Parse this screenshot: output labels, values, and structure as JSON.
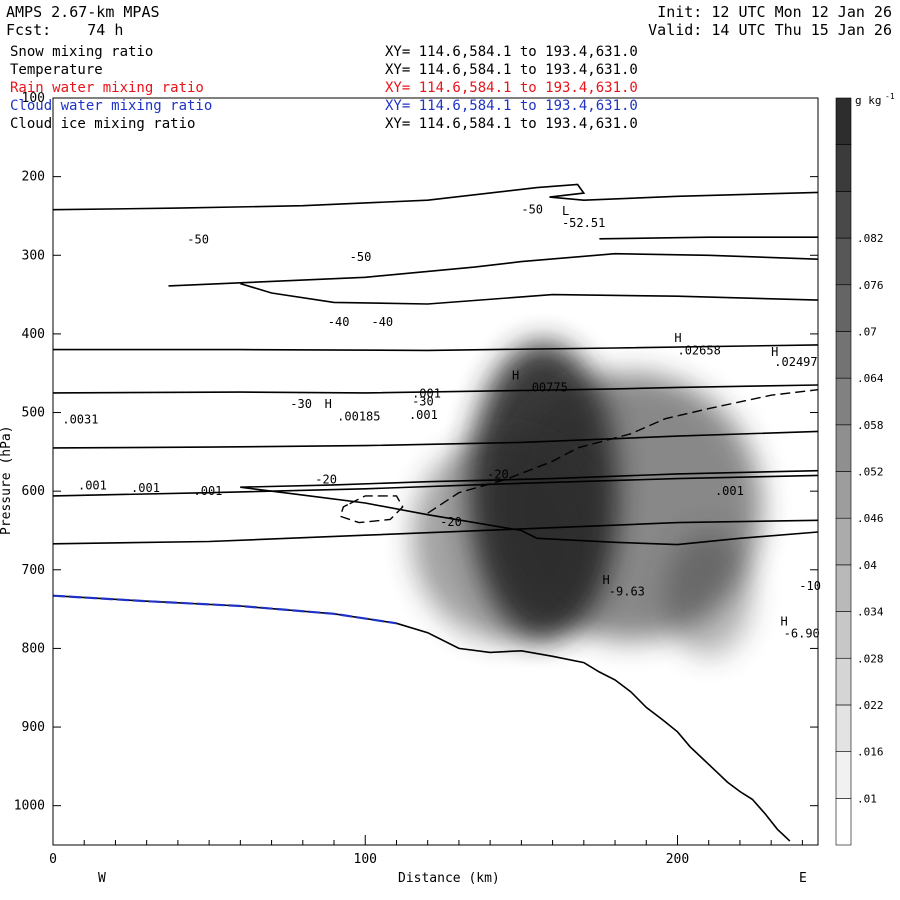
{
  "header": {
    "model": "AMPS 2.67-km MPAS",
    "init": "Init: 12 UTC Mon 12 Jan 26",
    "fcst": "Fcst:    74 h",
    "valid": "Valid: 14 UTC Thu 15 Jan 26"
  },
  "fields": [
    {
      "name": "Snow mixing ratio",
      "xy": "XY= 114.6,584.1 to 193.4,631.0",
      "color": "#000000"
    },
    {
      "name": "Temperature",
      "xy": "XY= 114.6,584.1 to 193.4,631.0",
      "color": "#000000"
    },
    {
      "name": "Rain water mixing ratio",
      "xy": "XY= 114.6,584.1 to 193.4,631.0",
      "color": "#e8141b"
    },
    {
      "name": "Cloud water mixing ratio",
      "xy": "XY= 114.6,584.1 to 193.4,631.0",
      "color": "#1f33c8"
    },
    {
      "name": "Cloud ice mixing ratio",
      "xy": "XY= 114.6,584.1 to 193.4,631.0",
      "color": "#000000"
    }
  ],
  "chart_data": {
    "type": "cross-section",
    "xlabel": "Distance (km)",
    "ylabel": "Pressure (hPa)",
    "xlim": [
      0,
      245
    ],
    "ylim": [
      1050,
      100
    ],
    "x_ticks": [
      0,
      100,
      200
    ],
    "y_ticks": [
      100,
      200,
      300,
      400,
      500,
      600,
      700,
      800,
      900,
      1000
    ],
    "x_end_labels": {
      "left": "W",
      "right": "E"
    },
    "colorbar": {
      "unit": "g kg",
      "unit_exp": "-1",
      "labels": [
        ".01",
        ".016",
        ".022",
        ".028",
        ".034",
        ".04",
        ".046",
        ".052",
        ".058",
        ".064",
        ".07",
        ".076",
        ".082"
      ],
      "levels": 16
    },
    "temperature_contours": [
      {
        "level": -50,
        "points": [
          [
            0,
            242
          ],
          [
            40,
            240
          ],
          [
            80,
            237
          ],
          [
            120,
            230
          ],
          [
            155,
            214
          ],
          [
            168,
            210
          ],
          [
            170,
            221
          ],
          [
            159,
            226
          ],
          [
            170,
            230
          ],
          [
            200,
            225
          ],
          [
            245,
            220
          ]
        ]
      },
      {
        "level": -50,
        "points": [
          [
            175,
            279
          ],
          [
            210,
            277
          ],
          [
            245,
            277
          ]
        ]
      },
      {
        "level": -50,
        "points": [
          [
            37,
            339
          ],
          [
            60,
            335
          ],
          [
            100,
            328
          ],
          [
            135,
            315
          ],
          [
            150,
            308
          ],
          [
            180,
            298
          ],
          [
            210,
            300
          ],
          [
            245,
            305
          ]
        ]
      },
      {
        "level": -50,
        "points": [
          [
            60,
            336
          ],
          [
            70,
            348
          ],
          [
            90,
            360
          ],
          [
            120,
            362
          ],
          [
            160,
            350
          ],
          [
            200,
            352
          ],
          [
            245,
            357
          ]
        ]
      },
      {
        "level": null,
        "points": [
          [
            0,
            420
          ],
          [
            60,
            420
          ],
          [
            120,
            421
          ],
          [
            180,
            418
          ],
          [
            245,
            414
          ]
        ]
      },
      {
        "level": -40,
        "points": [
          [
            0,
            475
          ],
          [
            60,
            474
          ],
          [
            100,
            475
          ],
          [
            150,
            472
          ],
          [
            180,
            470
          ],
          [
            200,
            468
          ],
          [
            245,
            465
          ]
        ]
      },
      {
        "level": null,
        "points": [
          [
            0,
            545
          ],
          [
            50,
            544
          ],
          [
            100,
            542
          ],
          [
            150,
            538
          ],
          [
            200,
            530
          ],
          [
            245,
            524
          ]
        ]
      },
      {
        "level": -30,
        "points": [
          [
            0,
            606
          ],
          [
            50,
            602
          ],
          [
            100,
            597
          ],
          [
            150,
            590
          ],
          [
            200,
            584
          ],
          [
            245,
            580
          ]
        ]
      },
      {
        "level": -30,
        "points": [
          [
            0,
            667
          ],
          [
            50,
            664
          ],
          [
            100,
            656
          ],
          [
            150,
            648
          ],
          [
            200,
            640
          ],
          [
            245,
            637
          ]
        ]
      },
      {
        "level": -20,
        "points": [
          [
            60,
            595
          ],
          [
            90,
            592
          ],
          [
            120,
            588
          ],
          [
            160,
            584
          ],
          [
            200,
            578
          ],
          [
            245,
            574
          ]
        ]
      },
      {
        "level": -20,
        "points": [
          [
            60,
            595
          ],
          [
            80,
            605
          ],
          [
            100,
            615
          ],
          [
            120,
            630
          ],
          [
            135,
            640
          ],
          [
            150,
            650
          ],
          [
            155,
            660
          ],
          [
            180,
            665
          ],
          [
            200,
            668
          ],
          [
            220,
            660
          ],
          [
            245,
            652
          ]
        ]
      },
      {
        "level": -20,
        "points": [
          [
            0,
            733
          ],
          [
            30,
            740
          ],
          [
            60,
            746
          ],
          [
            90,
            756
          ],
          [
            110,
            768
          ],
          [
            120,
            780
          ],
          [
            130,
            800
          ],
          [
            140,
            805
          ],
          [
            150,
            803
          ],
          [
            160,
            810
          ],
          [
            170,
            818
          ],
          [
            175,
            830
          ],
          [
            180,
            840
          ],
          [
            185,
            855
          ],
          [
            190,
            875
          ],
          [
            195,
            890
          ],
          [
            200,
            906
          ],
          [
            204,
            925
          ],
          [
            208,
            940
          ],
          [
            212,
            955
          ],
          [
            216,
            970
          ],
          [
            220,
            982
          ],
          [
            224,
            992
          ],
          [
            228,
            1010
          ],
          [
            232,
            1030
          ],
          [
            236,
            1045
          ]
        ]
      }
    ],
    "snow_contours": [
      {
        "level": ".001",
        "points": [
          [
            95,
            616
          ],
          [
            100,
            606
          ],
          [
            110,
            606
          ],
          [
            112,
            620
          ],
          [
            108,
            636
          ],
          [
            98,
            640
          ],
          [
            92,
            632
          ],
          [
            93,
            620
          ]
        ]
      },
      {
        "level": ".001",
        "points": [
          [
            120,
            628
          ],
          [
            130,
            602
          ],
          [
            145,
            585
          ],
          [
            160,
            562
          ],
          [
            168,
            545
          ],
          [
            185,
            527
          ],
          [
            196,
            508
          ],
          [
            210,
            495
          ],
          [
            230,
            478
          ],
          [
            245,
            471
          ]
        ]
      }
    ],
    "labels": [
      {
        "text": "-50",
        "x": 150,
        "y": 247
      },
      {
        "text": "L",
        "x": 163,
        "y": 249
      },
      {
        "text": "-52.51",
        "x": 163,
        "y": 264
      },
      {
        "text": "-50",
        "x": 43,
        "y": 285
      },
      {
        "text": "-50",
        "x": 95,
        "y": 307
      },
      {
        "text": "-40",
        "x": 88,
        "y": 390
      },
      {
        "text": "-40",
        "x": 102,
        "y": 390
      },
      {
        "text": "H",
        "x": 199,
        "y": 410
      },
      {
        "text": ".02658",
        "x": 200,
        "y": 426
      },
      {
        "text": "H",
        "x": 230,
        "y": 428
      },
      {
        "text": ".02497",
        "x": 231,
        "y": 441
      },
      {
        "text": "H",
        "x": 147,
        "y": 458
      },
      {
        "text": ".00775",
        "x": 151,
        "y": 473
      },
      {
        "text": ".001",
        "x": 115,
        "y": 481
      },
      {
        "text": "-30",
        "x": 76,
        "y": 494
      },
      {
        "text": "H",
        "x": 87,
        "y": 494
      },
      {
        "text": "-30",
        "x": 115,
        "y": 491
      },
      {
        "text": ".001",
        "x": 114,
        "y": 508
      },
      {
        "text": ".00185",
        "x": 91,
        "y": 510
      },
      {
        "text": ".0031",
        "x": 3,
        "y": 514
      },
      {
        "text": "-20",
        "x": 84,
        "y": 590
      },
      {
        "text": "-20",
        "x": 139,
        "y": 584
      },
      {
        "text": ".001",
        "x": 212,
        "y": 605
      },
      {
        "text": "-20",
        "x": 124,
        "y": 644
      },
      {
        "text": ".001",
        "x": 8,
        "y": 598
      },
      {
        "text": ".001",
        "x": 25,
        "y": 601
      },
      {
        "text": ".001",
        "x": 45,
        "y": 605
      },
      {
        "text": "H",
        "x": 176,
        "y": 718
      },
      {
        "text": "-9.63",
        "x": 178,
        "y": 733
      },
      {
        "text": "-10",
        "x": 239,
        "y": 726
      },
      {
        "text": "H",
        "x": 233,
        "y": 771
      },
      {
        "text": "-6.90",
        "x": 234,
        "y": 786
      }
    ],
    "shading": [
      {
        "x": 157,
        "p": 600,
        "rx": 24,
        "rp": 190,
        "value": 0.09
      },
      {
        "x": 185,
        "p": 620,
        "rx": 42,
        "rp": 170,
        "value": 0.05
      },
      {
        "x": 145,
        "p": 660,
        "rx": 30,
        "rp": 130,
        "value": 0.04
      },
      {
        "x": 210,
        "p": 730,
        "rx": 14,
        "rp": 80,
        "value": 0.03
      }
    ]
  }
}
